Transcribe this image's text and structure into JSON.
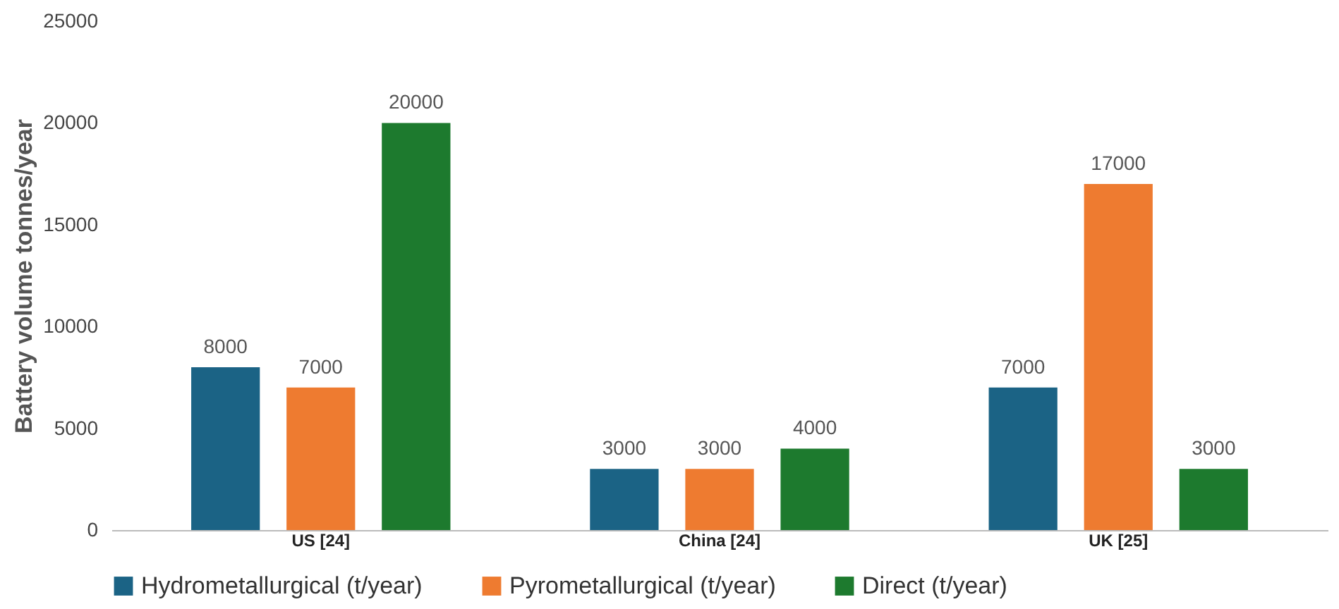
{
  "chart_data": {
    "type": "bar",
    "ylabel": "Battery volume tonnes/year",
    "categories": [
      "US [24]",
      "China [24]",
      "UK [25]"
    ],
    "series": [
      {
        "name": "Hydrometallurgical (t/year)",
        "color": "#1b6385",
        "values": [
          8000,
          3000,
          7000
        ]
      },
      {
        "name": "Pyrometallurgical (t/year)",
        "color": "#ee7b30",
        "values": [
          7000,
          3000,
          17000
        ]
      },
      {
        "name": "Direct (t/year)",
        "color": "#1d7a2e",
        "values": [
          20000,
          4000,
          3000
        ]
      }
    ],
    "ylim": [
      0,
      25000
    ],
    "yticks": [
      0,
      5000,
      10000,
      15000,
      20000,
      25000
    ],
    "data_labels": true,
    "legend": "bottom",
    "grid": false
  }
}
